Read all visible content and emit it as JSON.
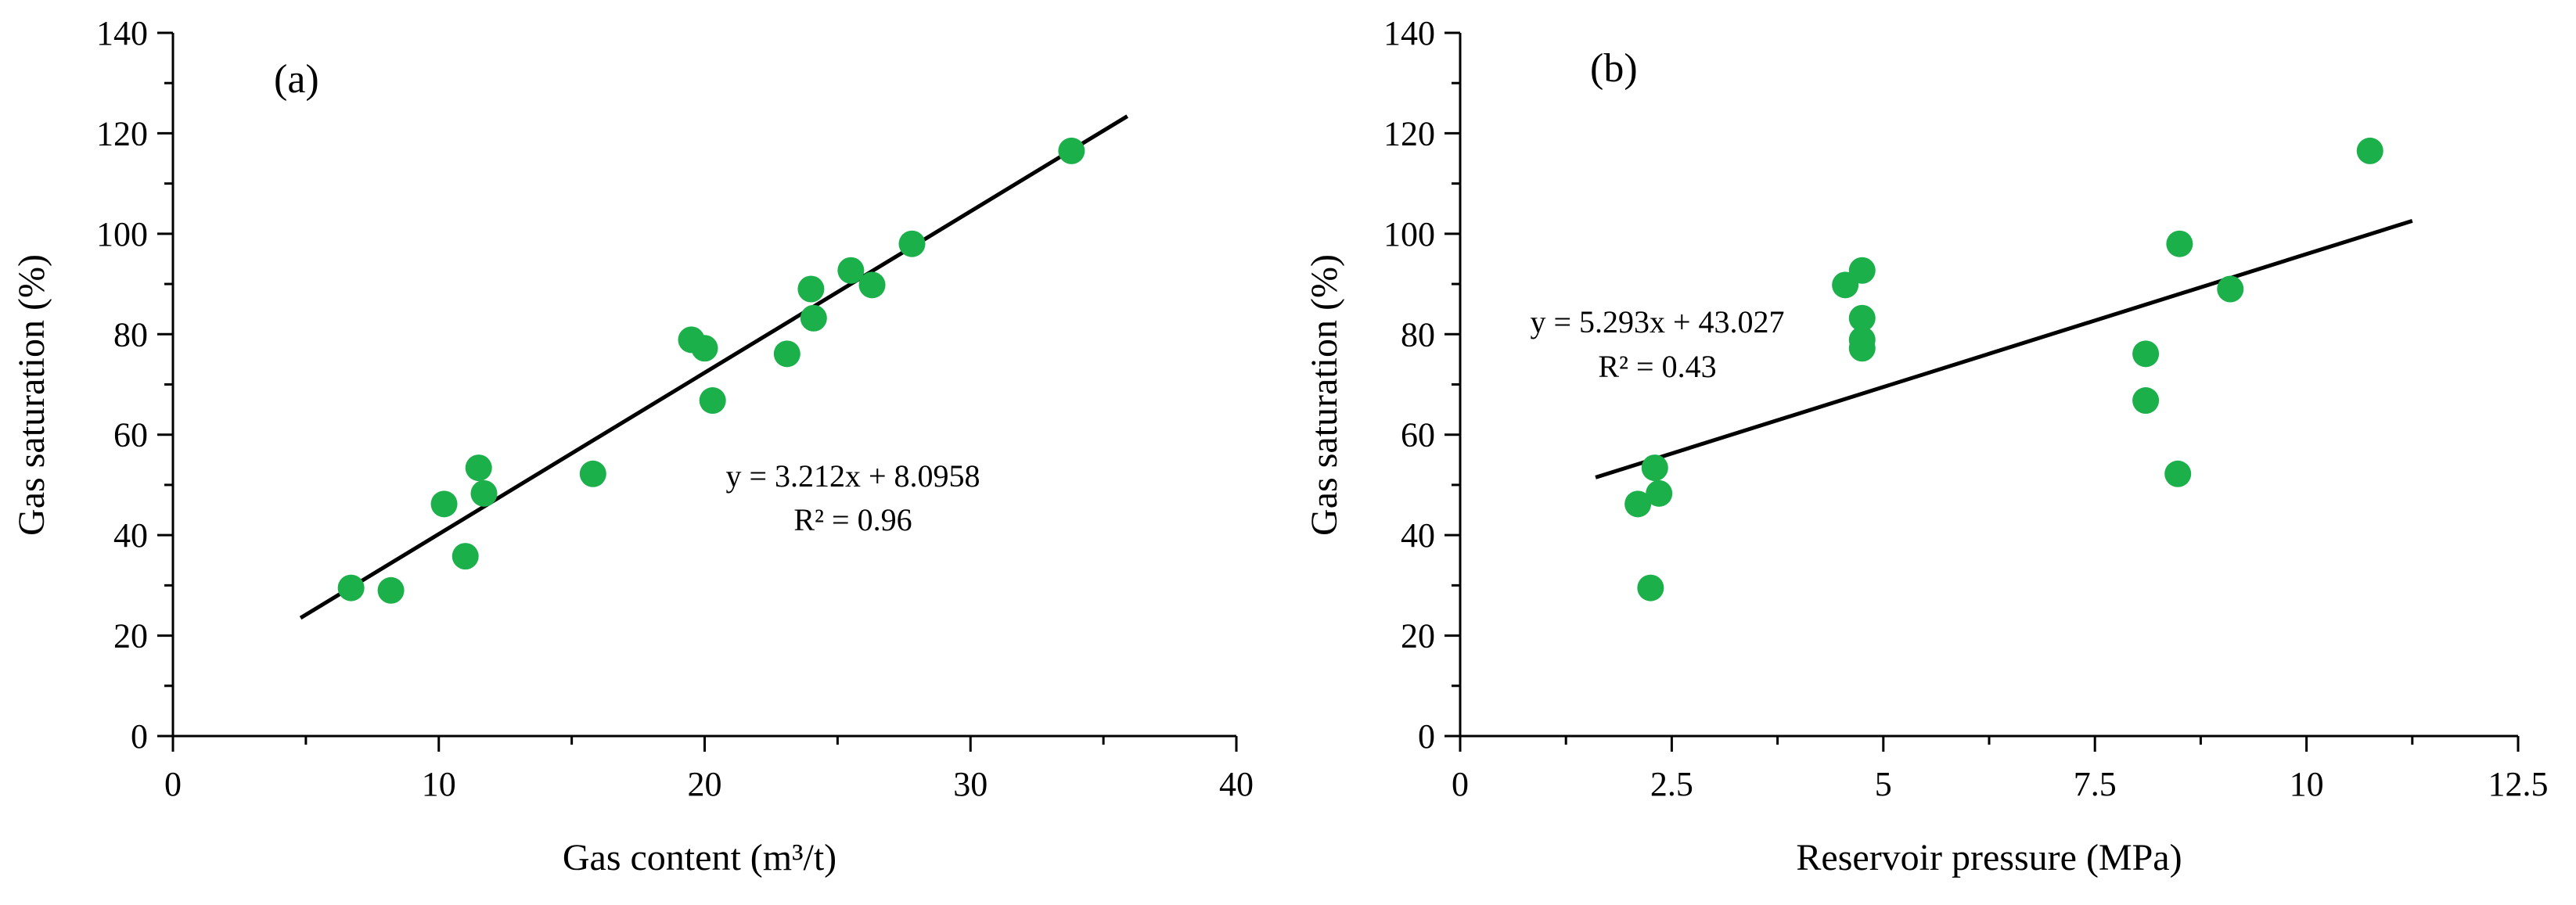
{
  "colors": {
    "point": "#1bb04a",
    "line": "#000000",
    "axis": "#000000"
  },
  "chart_data": [
    {
      "type": "scatter",
      "panel_label": "(a)",
      "xlabel": "Gas content (m³/t)",
      "ylabel": "Gas saturation (%)",
      "xlim": [
        0,
        40
      ],
      "ylim": [
        0,
        140
      ],
      "x_ticks": [
        "0",
        "10",
        "20",
        "30",
        "40"
      ],
      "y_ticks": [
        "0",
        "20",
        "40",
        "60",
        "80",
        "100",
        "120",
        "140"
      ],
      "points": [
        {
          "x": 6.7,
          "y": 29.5
        },
        {
          "x": 8.2,
          "y": 29.0
        },
        {
          "x": 10.2,
          "y": 46.2
        },
        {
          "x": 11.0,
          "y": 35.8
        },
        {
          "x": 11.5,
          "y": 53.4
        },
        {
          "x": 11.7,
          "y": 48.3
        },
        {
          "x": 15.8,
          "y": 52.2
        },
        {
          "x": 19.5,
          "y": 78.9
        },
        {
          "x": 20.0,
          "y": 77.2
        },
        {
          "x": 20.3,
          "y": 66.8
        },
        {
          "x": 23.1,
          "y": 76.1
        },
        {
          "x": 24.0,
          "y": 89.0
        },
        {
          "x": 24.1,
          "y": 83.2
        },
        {
          "x": 25.5,
          "y": 92.7
        },
        {
          "x": 26.3,
          "y": 89.8
        },
        {
          "x": 27.8,
          "y": 98.0
        },
        {
          "x": 33.8,
          "y": 116.5
        }
      ],
      "fit": {
        "x_range": [
          4.8,
          35.9
        ],
        "slope": 3.212,
        "intercept": 8.0958
      },
      "annotations": [
        "y = 3.212x + 8.0958",
        "R² = 0.96"
      ]
    },
    {
      "type": "scatter",
      "panel_label": "(b)",
      "xlabel": "Reservoir pressure (MPa)",
      "ylabel": "Gas saturation (%)",
      "xlim": [
        0,
        12.5
      ],
      "ylim": [
        0,
        140
      ],
      "x_ticks": [
        "0",
        "2.5",
        "5",
        "7.5",
        "10",
        "12.5"
      ],
      "y_ticks": [
        "0",
        "20",
        "40",
        "60",
        "80",
        "100",
        "120",
        "140"
      ],
      "points": [
        {
          "x": 2.1,
          "y": 46.2
        },
        {
          "x": 2.25,
          "y": 29.5
        },
        {
          "x": 2.3,
          "y": 53.4
        },
        {
          "x": 2.35,
          "y": 48.3
        },
        {
          "x": 4.55,
          "y": 89.8
        },
        {
          "x": 4.75,
          "y": 92.7
        },
        {
          "x": 4.75,
          "y": 83.2
        },
        {
          "x": 4.75,
          "y": 78.9
        },
        {
          "x": 4.75,
          "y": 77.2
        },
        {
          "x": 8.1,
          "y": 76.1
        },
        {
          "x": 8.1,
          "y": 66.8
        },
        {
          "x": 8.5,
          "y": 98.0
        },
        {
          "x": 8.48,
          "y": 52.2
        },
        {
          "x": 9.1,
          "y": 89.0
        },
        {
          "x": 10.75,
          "y": 116.5
        }
      ],
      "fit": {
        "x_range": [
          1.6,
          11.25
        ],
        "slope": 5.293,
        "intercept": 43.027
      },
      "annotations": [
        "y = 5.293x + 43.027",
        "R² = 0.43"
      ]
    }
  ]
}
